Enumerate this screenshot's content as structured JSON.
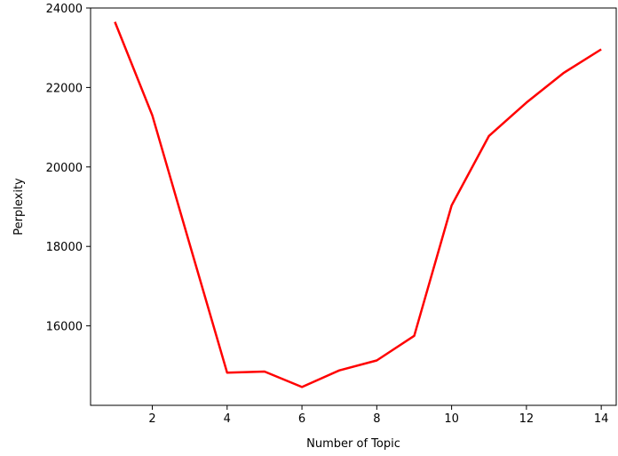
{
  "chart_data": {
    "type": "line",
    "title": "",
    "xlabel": "Number of Topic",
    "ylabel": "Perplexity",
    "x": [
      1,
      2,
      3,
      4,
      5,
      6,
      7,
      8,
      9,
      10,
      11,
      12,
      13,
      14
    ],
    "series": [
      {
        "color": "#ff0000",
        "values": [
          23650,
          21300,
          18050,
          14820,
          14850,
          14460,
          14880,
          15130,
          15750,
          19030,
          20780,
          21620,
          22370,
          22960
        ]
      }
    ],
    "xlim": [
      0.35,
      14.4
    ],
    "ylim": [
      14000,
      24000
    ],
    "xticks": [
      2,
      4,
      6,
      8,
      10,
      12,
      14
    ],
    "xtick_labels": [
      "2",
      "4",
      "6",
      "8",
      "10",
      "12",
      "14"
    ],
    "yticks": [
      16000,
      18000,
      20000,
      22000,
      24000
    ],
    "ytick_labels": [
      "16000",
      "18000",
      "20000",
      "22000",
      "24000"
    ],
    "grid": false,
    "legend": "none"
  }
}
